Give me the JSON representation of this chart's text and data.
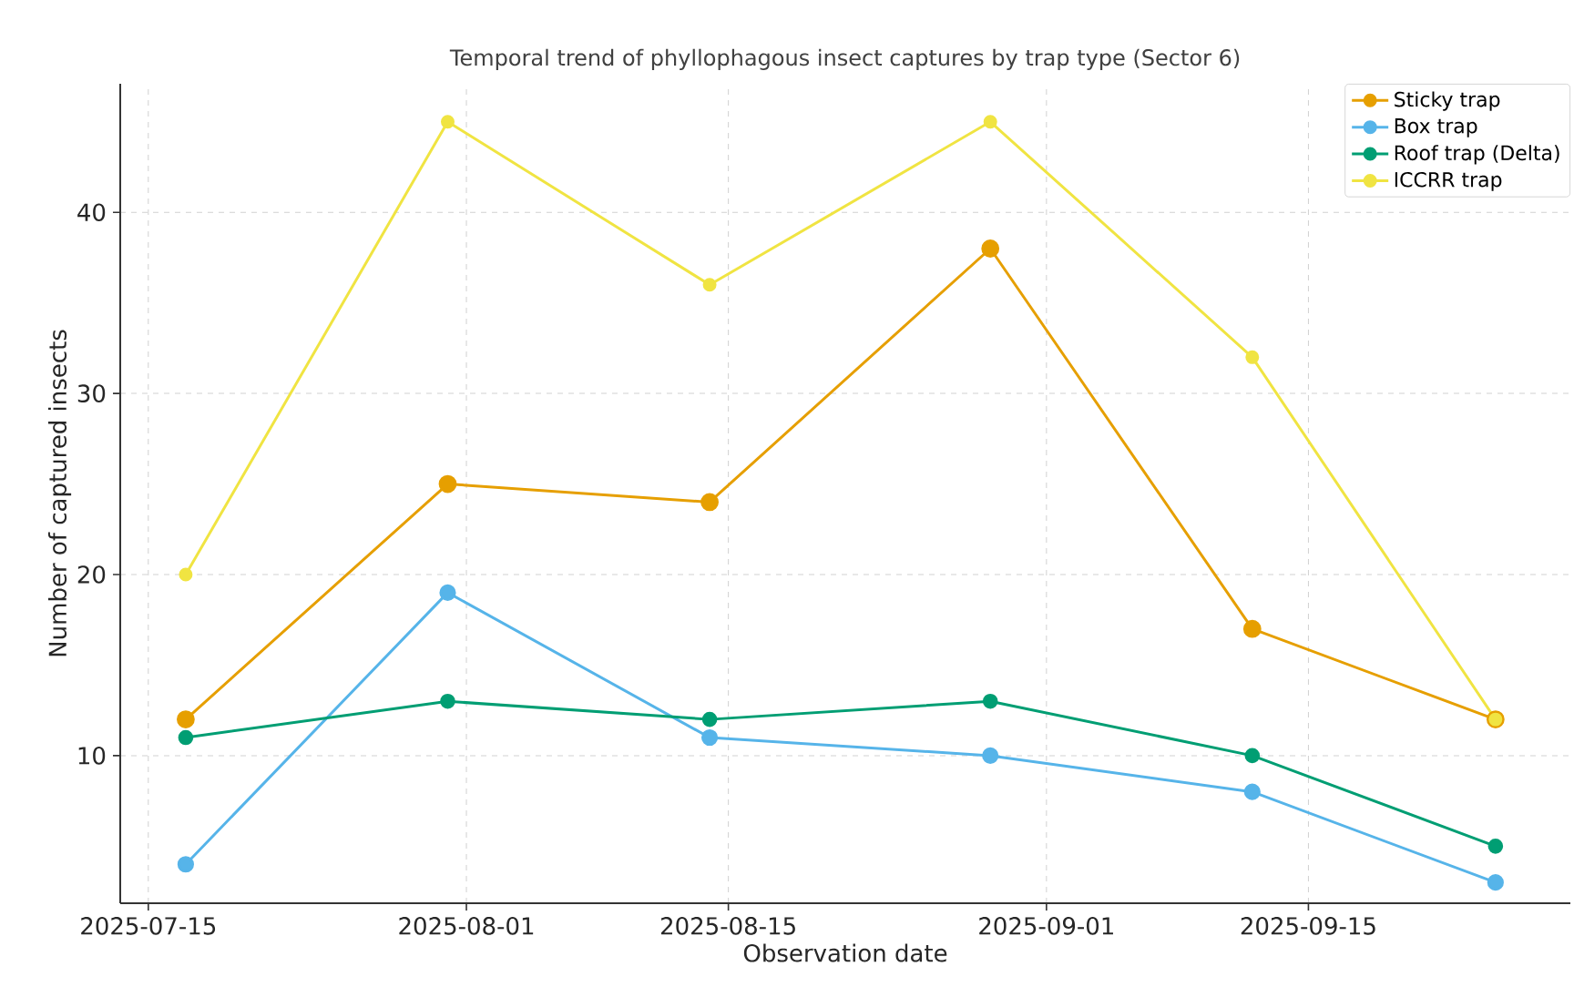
{
  "chart_data": {
    "type": "line",
    "title": "Temporal trend of phyllophagous insect captures by trap type (Sector 6)",
    "xlabel": "Observation date",
    "ylabel": "Number of captured insects",
    "x": [
      "2025-07-17",
      "2025-07-31",
      "2025-08-14",
      "2025-08-29",
      "2025-09-12",
      "2025-09-25"
    ],
    "series": [
      {
        "name": "Sticky trap",
        "color": "#e69f00",
        "values": [
          12,
          25,
          24,
          38,
          17,
          12
        ]
      },
      {
        "name": "Box trap",
        "color": "#56b4e9",
        "values": [
          4,
          19,
          11,
          10,
          8,
          3
        ]
      },
      {
        "name": "Roof trap (Delta)",
        "color": "#009e73",
        "values": [
          11,
          13,
          12,
          13,
          10,
          5
        ]
      },
      {
        "name": "ICCRR trap",
        "color": "#f0e442",
        "values": [
          20,
          45,
          36,
          45,
          32,
          12
        ]
      }
    ],
    "xlim": [
      "2025-07-13T12:00",
      "2025-09-29"
    ],
    "ylim": [
      1.85,
      47.1
    ],
    "xticks": [
      "2025-07-15",
      "2025-08-01",
      "2025-08-15",
      "2025-09-01",
      "2025-09-15"
    ],
    "yticks": [
      10,
      20,
      30,
      40
    ],
    "grid": true,
    "legend": "top right",
    "marker": "circle",
    "line_style": "solid"
  }
}
